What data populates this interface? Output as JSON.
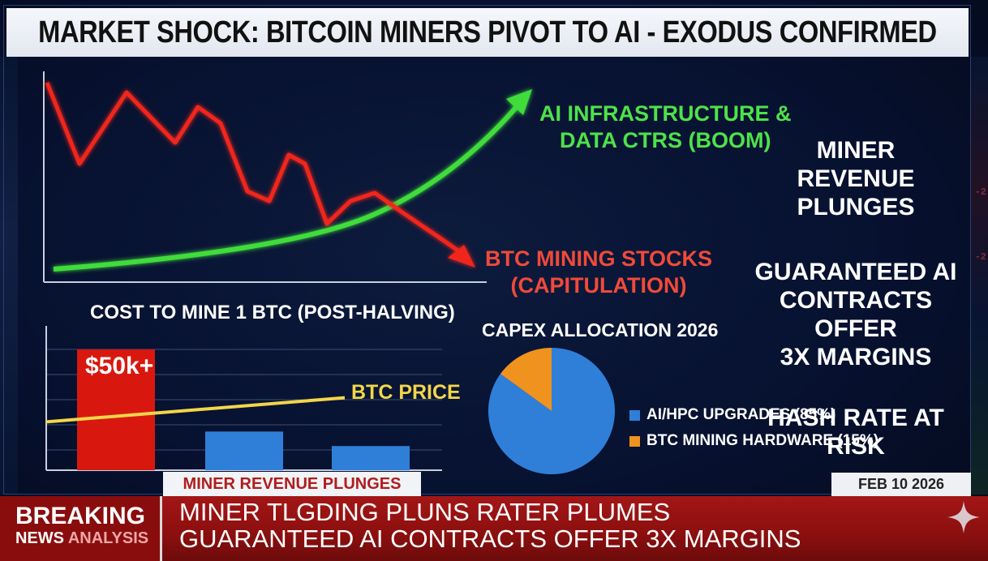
{
  "headline": "MARKET SHOCK: BITCOIN MINERS PIVOT TO AI - EXODUS CONFIRMED",
  "line_chart": {
    "ai_label_line1": "AI INFRASTRUCTURE &",
    "ai_label_line2": "DATA CTRS (BOOM)",
    "btc_label_line1": "BTC MINING STOCKS",
    "btc_label_line2": "(CAPITULATION)",
    "ai_color": "#4ee24a",
    "btc_color": "#f0362a"
  },
  "side_points": {
    "p1_line1": "MINER REVENUE",
    "p1_line2": "PLUNGES",
    "p2_line1": "GUARANTEED AI",
    "p2_line2": "CONTRACTS OFFER",
    "p2_line3": "3X MARGINS",
    "p3": "HASH RATE AT RISK"
  },
  "cost_chart": {
    "title": "COST TO MINE 1 BTC (POST-HALVING)",
    "bar_label": "$50k+",
    "price_label": "BTC PRICE",
    "cost_bar_color": "#d8180f",
    "other_bar_color": "#2f7fd9",
    "price_line_color": "#f2d64a"
  },
  "chart_data": [
    {
      "type": "line",
      "title": "",
      "series": [
        {
          "name": "AI INFRASTRUCTURE & DATA CTRS (BOOM)",
          "trend": "rising"
        },
        {
          "name": "BTC MINING STOCKS (CAPITULATION)",
          "trend": "falling"
        }
      ]
    },
    {
      "type": "bar",
      "title": "COST TO MINE 1 BTC (POST-HALVING)",
      "categories": [
        "",
        "",
        ""
      ],
      "values": [
        100,
        32,
        20
      ],
      "labels": [
        "$50k+",
        "",
        ""
      ],
      "reference_line": {
        "name": "BTC PRICE",
        "start": 40,
        "end": 60
      },
      "ylim": [
        0,
        100
      ]
    },
    {
      "type": "pie",
      "title": "CAPEX ALLOCATION 2026",
      "categories": [
        "AI/HPC UPGRADES (85%)",
        "BTC MINING HARDWARE (15%)"
      ],
      "values": [
        85,
        15
      ],
      "colors": [
        "#2f7fd9",
        "#f0931e"
      ]
    }
  ],
  "ticker_tag": "MINER REVENUE PLUNGES",
  "date": "FEB 10 2026",
  "breaking": {
    "word1": "BREAKING",
    "word2": "NEWS",
    "word3": "ANALYSIS",
    "line1": "MINER TLGDING PLUNS RATER PLUMES",
    "line2": "GUARANTEED AI CONTRACTS OFFER 3X MARGINS"
  },
  "edge_numbers": [
    "-2",
    "-2"
  ]
}
